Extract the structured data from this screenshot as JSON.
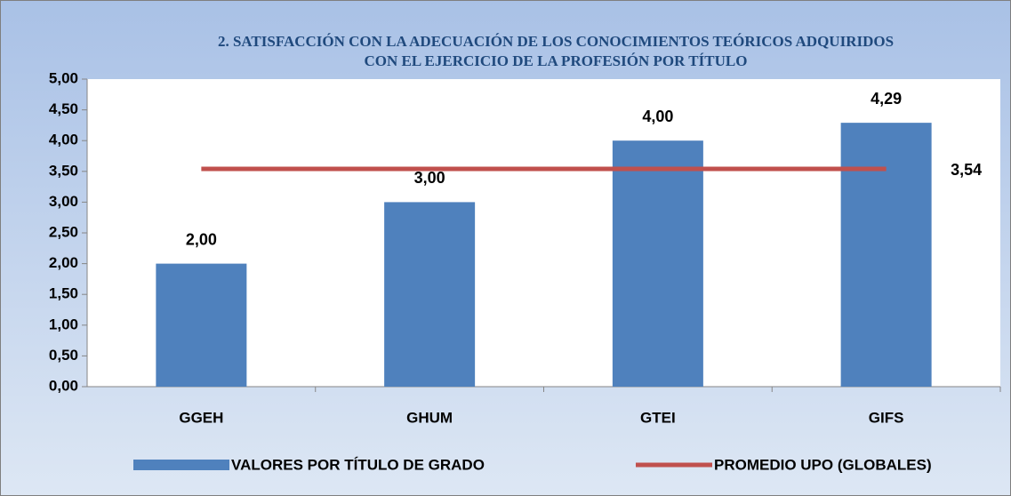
{
  "chart_data": {
    "type": "bar_line",
    "title": [
      "2. SATISFACCIÓN CON LA  ADECUACIÓN  DE LOS CONOCIMIENTOS TEÓRICOS ADQUIRIDOS",
      "CON EL EJERCICIO DE LA PROFESIÓN POR TÍTULO"
    ],
    "categories": [
      "GGEH",
      "GHUM",
      "GTEI",
      "GIFS"
    ],
    "series": [
      {
        "name": "VALORES POR TÍTULO DE GRADO",
        "type": "bar",
        "color": "#4f81bd",
        "values": [
          2.0,
          3.0,
          4.0,
          4.29
        ],
        "value_labels": [
          "2,00",
          "3,00",
          "4,00",
          "4,29"
        ]
      },
      {
        "name": "PROMEDIO UPO (GLOBALES)",
        "type": "line",
        "color": "#c0504d",
        "values": [
          3.54,
          3.54,
          3.54,
          3.54
        ],
        "value_labels": [
          null,
          null,
          null,
          "3,54"
        ]
      }
    ],
    "ylim": [
      0,
      5
    ],
    "yticks": [
      {
        "value": 0,
        "label": "0,00"
      },
      {
        "value": 0.5,
        "label": "0,50"
      },
      {
        "value": 1,
        "label": "1,00"
      },
      {
        "value": 1.5,
        "label": "1,50"
      },
      {
        "value": 2,
        "label": "2,00"
      },
      {
        "value": 2.5,
        "label": "2,50"
      },
      {
        "value": 3,
        "label": "3,00"
      },
      {
        "value": 3.5,
        "label": "3,50"
      },
      {
        "value": 4,
        "label": "4,00"
      },
      {
        "value": 4.5,
        "label": "4,50"
      },
      {
        "value": 5,
        "label": "5,00"
      }
    ],
    "legend": "bottom"
  }
}
